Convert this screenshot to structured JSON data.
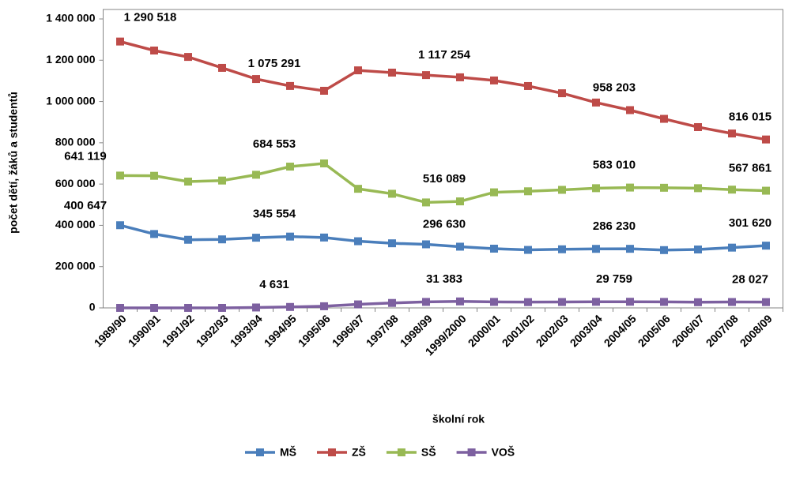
{
  "chart_data": {
    "type": "line",
    "x_label": "školní rok",
    "y_label": "počet dětí, žáků a studentů",
    "categories": [
      "1989/90",
      "1990/91",
      "1991/92",
      "1992/93",
      "1993/94",
      "1994/95",
      "1995/96",
      "1996/97",
      "1997/98",
      "1998/99",
      "1999/2000",
      "2000/01",
      "2001/02",
      "2002/03",
      "2003/04",
      "2004/05",
      "2005/06",
      "2006/07",
      "2007/08",
      "2008/09"
    ],
    "ylim": [
      0,
      1400000
    ],
    "yticks": [
      0,
      {
        "value": 200000,
        "label": "200 000"
      },
      {
        "value": 400000,
        "label": "400 000"
      },
      {
        "value": 600000,
        "label": "600 000"
      },
      {
        "value": 800000,
        "label": "800 000"
      },
      {
        "value": 1000000,
        "label": "1 000 000"
      },
      {
        "value": 1200000,
        "label": "1 200 000"
      },
      {
        "value": 1400000,
        "label": "1 400 000"
      }
    ],
    "legend": "bottom",
    "series": [
      {
        "name": "MŠ",
        "color": "#4a7ebb",
        "values": [
          400647,
          358000,
          330000,
          332000,
          340000,
          345554,
          341000,
          323000,
          313000,
          308000,
          296630,
          287000,
          281000,
          284000,
          286000,
          286230,
          280000,
          283000,
          292000,
          301620
        ],
        "value_labels": [
          "400 647",
          null,
          null,
          null,
          null,
          "345 554",
          null,
          null,
          null,
          null,
          "296 630",
          null,
          null,
          null,
          null,
          "286 230",
          null,
          null,
          null,
          "301 620"
        ]
      },
      {
        "name": "ZŠ",
        "color": "#be4b48",
        "values": [
          1290518,
          1247000,
          1216000,
          1163000,
          1109000,
          1075291,
          1052000,
          1151000,
          1140000,
          1128000,
          1117254,
          1102000,
          1075000,
          1040000,
          995000,
          958203,
          916000,
          876000,
          845000,
          816015
        ],
        "value_labels": [
          "1 290 518",
          null,
          null,
          null,
          null,
          "1 075 291",
          null,
          null,
          null,
          null,
          "1 117 254",
          null,
          null,
          null,
          null,
          "958 203",
          null,
          null,
          null,
          "816 015"
        ]
      },
      {
        "name": "SŠ",
        "color": "#98b954",
        "values": [
          641119,
          640000,
          612000,
          617000,
          645000,
          684553,
          700000,
          577000,
          553000,
          511000,
          516089,
          560000,
          565000,
          572000,
          580000,
          583010,
          582000,
          580000,
          573000,
          567861
        ],
        "value_labels": [
          "641 119",
          null,
          null,
          null,
          null,
          "684 553",
          null,
          null,
          null,
          null,
          "516 089",
          null,
          null,
          null,
          null,
          "583 010",
          null,
          null,
          null,
          "567 861"
        ]
      },
      {
        "name": "VOŠ",
        "color": "#7d60a0",
        "values": [
          0,
          0,
          0,
          0,
          2000,
          4631,
          8000,
          17000,
          24000,
          29000,
          31383,
          29000,
          28000,
          28500,
          29500,
          29759,
          29000,
          27500,
          28500,
          28027
        ],
        "value_labels": [
          null,
          null,
          null,
          null,
          null,
          "4 631",
          null,
          null,
          null,
          null,
          "31 383",
          null,
          null,
          null,
          null,
          "29 759",
          null,
          null,
          null,
          "28 027"
        ]
      }
    ]
  }
}
